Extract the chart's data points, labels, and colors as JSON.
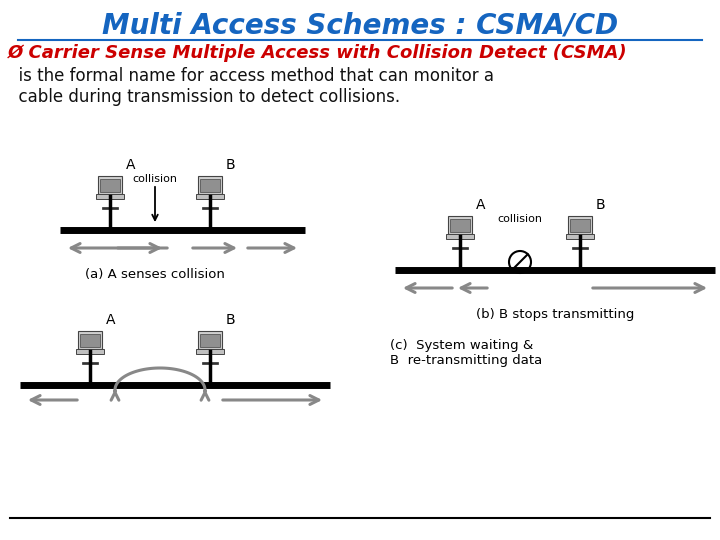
{
  "title": "Multi Access Schemes : CSMA/CD",
  "title_color": "#1565C0",
  "title_fontsize": 20,
  "bullet_color": "#CC0000",
  "bullet_text": "Ø Carrier Sense Multiple Access with Collision Detect (CSMA)",
  "bullet_fontsize": 13,
  "body_text": "  is the formal name for access method that can monitor a\n  cable during transmission to detect collisions.",
  "body_fontsize": 12,
  "body_color": "#111111",
  "bg_color": "#ffffff",
  "caption_a": "(a) A senses collision",
  "caption_b": "(b) B stops transmitting",
  "caption_c": "(c)  System waiting &\nB  re-transmitting data"
}
